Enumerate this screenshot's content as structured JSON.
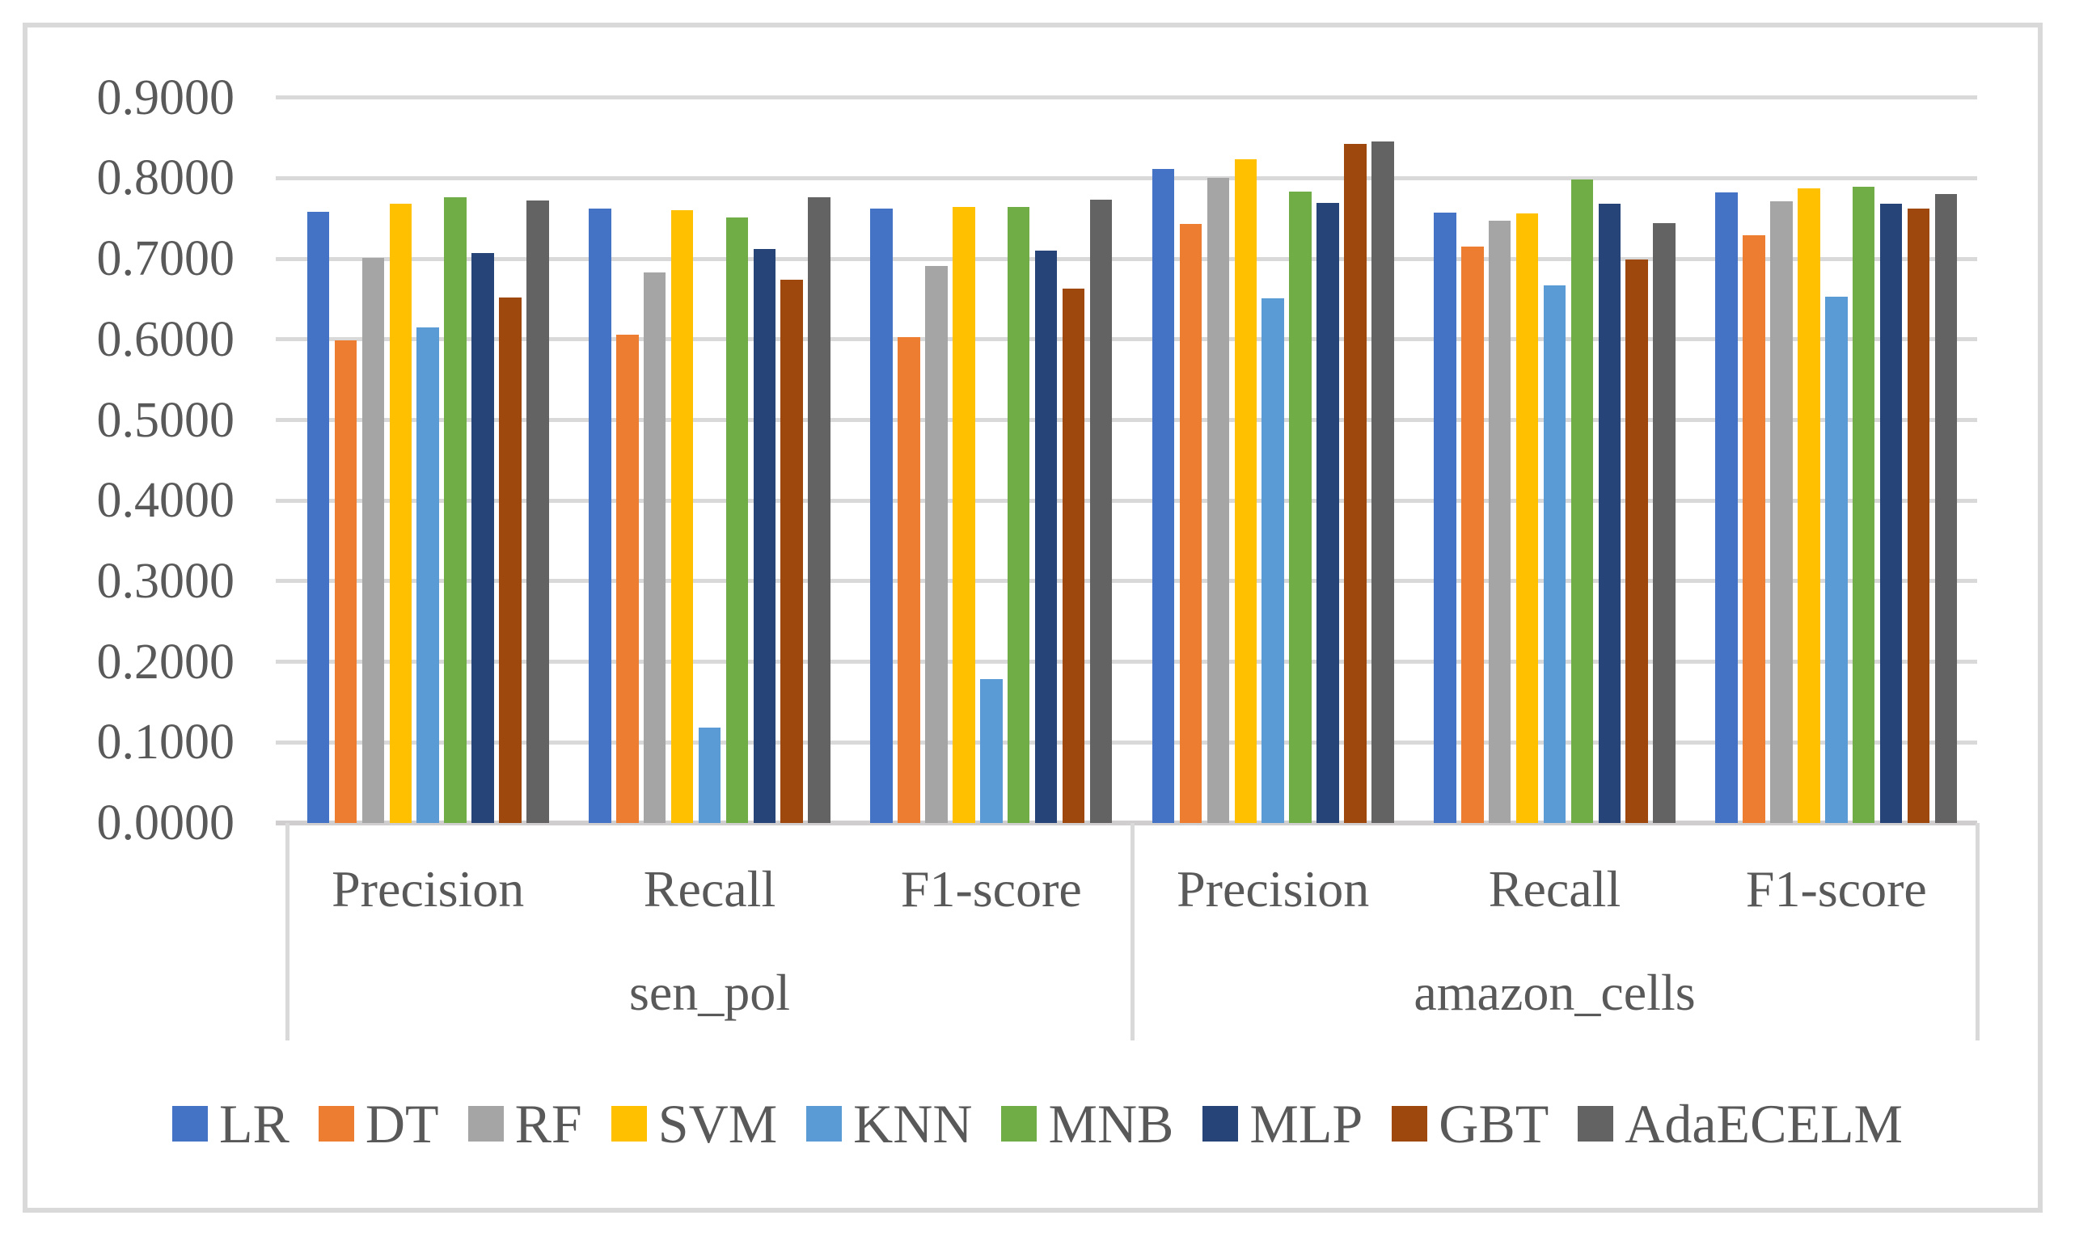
{
  "figure": {
    "border_color": "#d9d9d9",
    "text_color": "#595959",
    "gridline_color": "#d9d9d9",
    "background": "#ffffff"
  },
  "y_axis": {
    "tick_labels": [
      "0.9000",
      "0.8000",
      "0.7000",
      "0.6000",
      "0.5000",
      "0.4000",
      "0.3000",
      "0.2000",
      "0.1000",
      "0.0000"
    ],
    "min": 0.0,
    "max": 0.9,
    "step": 0.1
  },
  "chart_data": {
    "type": "bar",
    "title": "",
    "xlabel": "",
    "ylabel": "",
    "ylim": [
      0.0,
      0.9
    ],
    "grid": true,
    "legend_position": "bottom",
    "group_labels": [
      "sen_pol",
      "amazon_cells"
    ],
    "categories": [
      "Precision",
      "Recall",
      "F1-score",
      "Precision",
      "Recall",
      "F1-score"
    ],
    "series": [
      {
        "name": "LR",
        "color": "#4472c4",
        "values": [
          0.758,
          0.762,
          0.762,
          0.811,
          0.757,
          0.782
        ]
      },
      {
        "name": "DT",
        "color": "#ed7d31",
        "values": [
          0.599,
          0.606,
          0.603,
          0.743,
          0.715,
          0.729
        ]
      },
      {
        "name": "RF",
        "color": "#a5a5a5",
        "values": [
          0.701,
          0.683,
          0.691,
          0.8,
          0.747,
          0.771
        ]
      },
      {
        "name": "SVM",
        "color": "#ffc000",
        "values": [
          0.768,
          0.76,
          0.764,
          0.823,
          0.756,
          0.787
        ]
      },
      {
        "name": "KNN",
        "color": "#5b9bd5",
        "values": [
          0.615,
          0.118,
          0.179,
          0.651,
          0.667,
          0.653
        ]
      },
      {
        "name": "MNB",
        "color": "#70ad47",
        "values": [
          0.776,
          0.751,
          0.764,
          0.783,
          0.798,
          0.789
        ]
      },
      {
        "name": "MLP",
        "color": "#264478",
        "values": [
          0.707,
          0.712,
          0.71,
          0.769,
          0.768,
          0.768
        ]
      },
      {
        "name": "GBT",
        "color": "#9e480e",
        "values": [
          0.652,
          0.674,
          0.663,
          0.843,
          0.699,
          0.762
        ]
      },
      {
        "name": "AdaECELM",
        "color": "#636363",
        "values": [
          0.772,
          0.776,
          0.773,
          0.846,
          0.744,
          0.78
        ]
      }
    ]
  }
}
